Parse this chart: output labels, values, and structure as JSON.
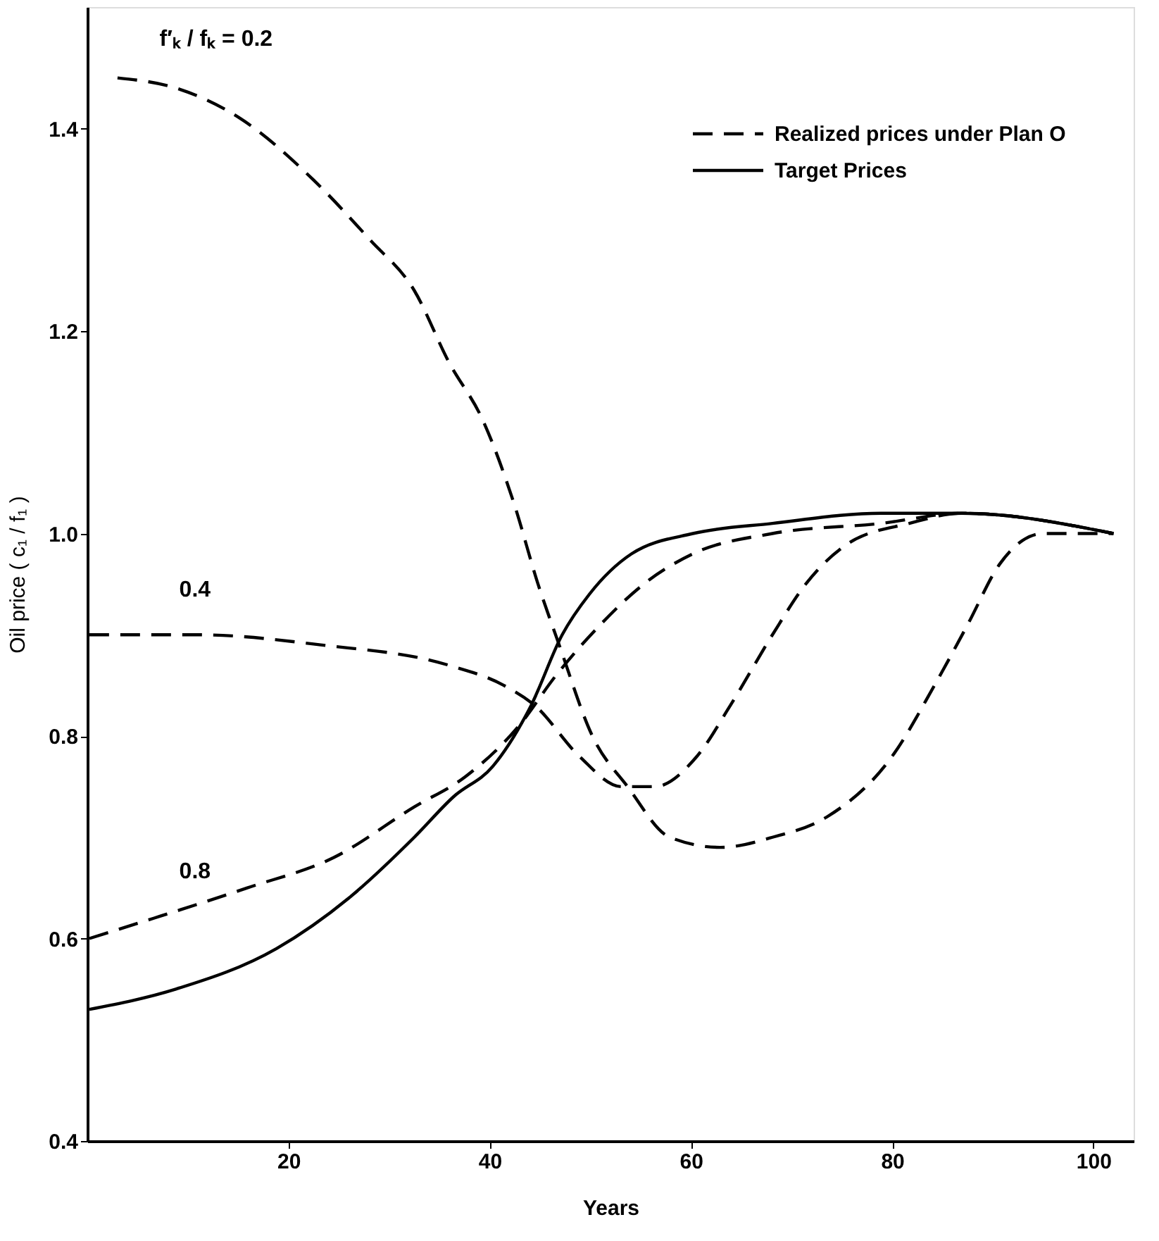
{
  "chart_data": {
    "type": "line",
    "xlabel": "Years",
    "ylabel": "Oil price ( c₁ / f₁ )",
    "xlim": [
      0,
      104
    ],
    "xticks": [
      20,
      40,
      60,
      80,
      100
    ],
    "ylim": [
      0.4,
      1.52
    ],
    "yticks": [
      0.4,
      0.6,
      0.8,
      {
        "value": 1,
        "label": "1.0"
      },
      1.2,
      1.4
    ],
    "grid": false,
    "legend": "top right",
    "marker": "none",
    "series": [
      {
        "name": "Realized prices under Plan O",
        "color": "#000000",
        "line_style": "dashed",
        "x": [
          3,
          8.8,
          15.2,
          22.4,
          28.1,
          32.5,
          35.9,
          39.4,
          42.4,
          44.8,
          46.9,
          50.2,
          53.7,
          57.9,
          62.9,
          68.1,
          73.5,
          80,
          84.2,
          87.5,
          90.7,
          95,
          102
        ],
        "values": [
          1.45,
          1.44,
          1.41,
          1.35,
          1.29,
          1.24,
          1.17,
          1.11,
          1.03,
          0.95,
          0.89,
          0.8,
          0.75,
          0.7,
          0.69,
          0.7,
          0.72,
          0.78,
          0.85,
          0.91,
          0.97,
          1.0,
          1.0
        ]
      },
      {
        "color": "#000000",
        "line_style": "dashed",
        "x": [
          0.2,
          11,
          23.2,
          35.9,
          41.4,
          44.5,
          48.9,
          53.1,
          56.4,
          60.6,
          63.9,
          68.1,
          71.4,
          75.6,
          81.7,
          86.9,
          102
        ],
        "values": [
          0.9,
          0.9,
          0.89,
          0.87,
          0.85,
          0.83,
          0.78,
          0.75,
          0.75,
          0.78,
          0.83,
          0.9,
          0.95,
          0.99,
          1.01,
          1.02,
          1.0
        ]
      },
      {
        "color": "#000000",
        "line_style": "dashed",
        "x": [
          0.2,
          6.6,
          15.9,
          24.5,
          32.5,
          37.6,
          42.9,
          46.6,
          51,
          55.3,
          60.2,
          68.1,
          78.9,
          86.9,
          102
        ],
        "values": [
          0.6,
          0.62,
          0.65,
          0.68,
          0.73,
          0.76,
          0.81,
          0.86,
          0.91,
          0.95,
          0.98,
          1.0,
          1.01,
          1.02,
          1.0
        ]
      },
      {
        "name": "Target Prices",
        "color": "#000000",
        "line_style": "solid",
        "x": [
          0.2,
          8.8,
          18.8,
          26,
          32.5,
          36.4,
          40.3,
          44.1,
          47.2,
          49.9,
          54.1,
          60.2,
          68.1,
          78.9,
          86.9,
          102
        ],
        "values": [
          0.53,
          0.55,
          0.59,
          0.64,
          0.7,
          0.74,
          0.77,
          0.83,
          0.9,
          0.94,
          0.98,
          1.0,
          1.01,
          1.02,
          1.02,
          1.0
        ]
      }
    ],
    "annotations": [
      "f′ₖ / fₖ = 0.2",
      "0.4",
      "0.8"
    ]
  }
}
